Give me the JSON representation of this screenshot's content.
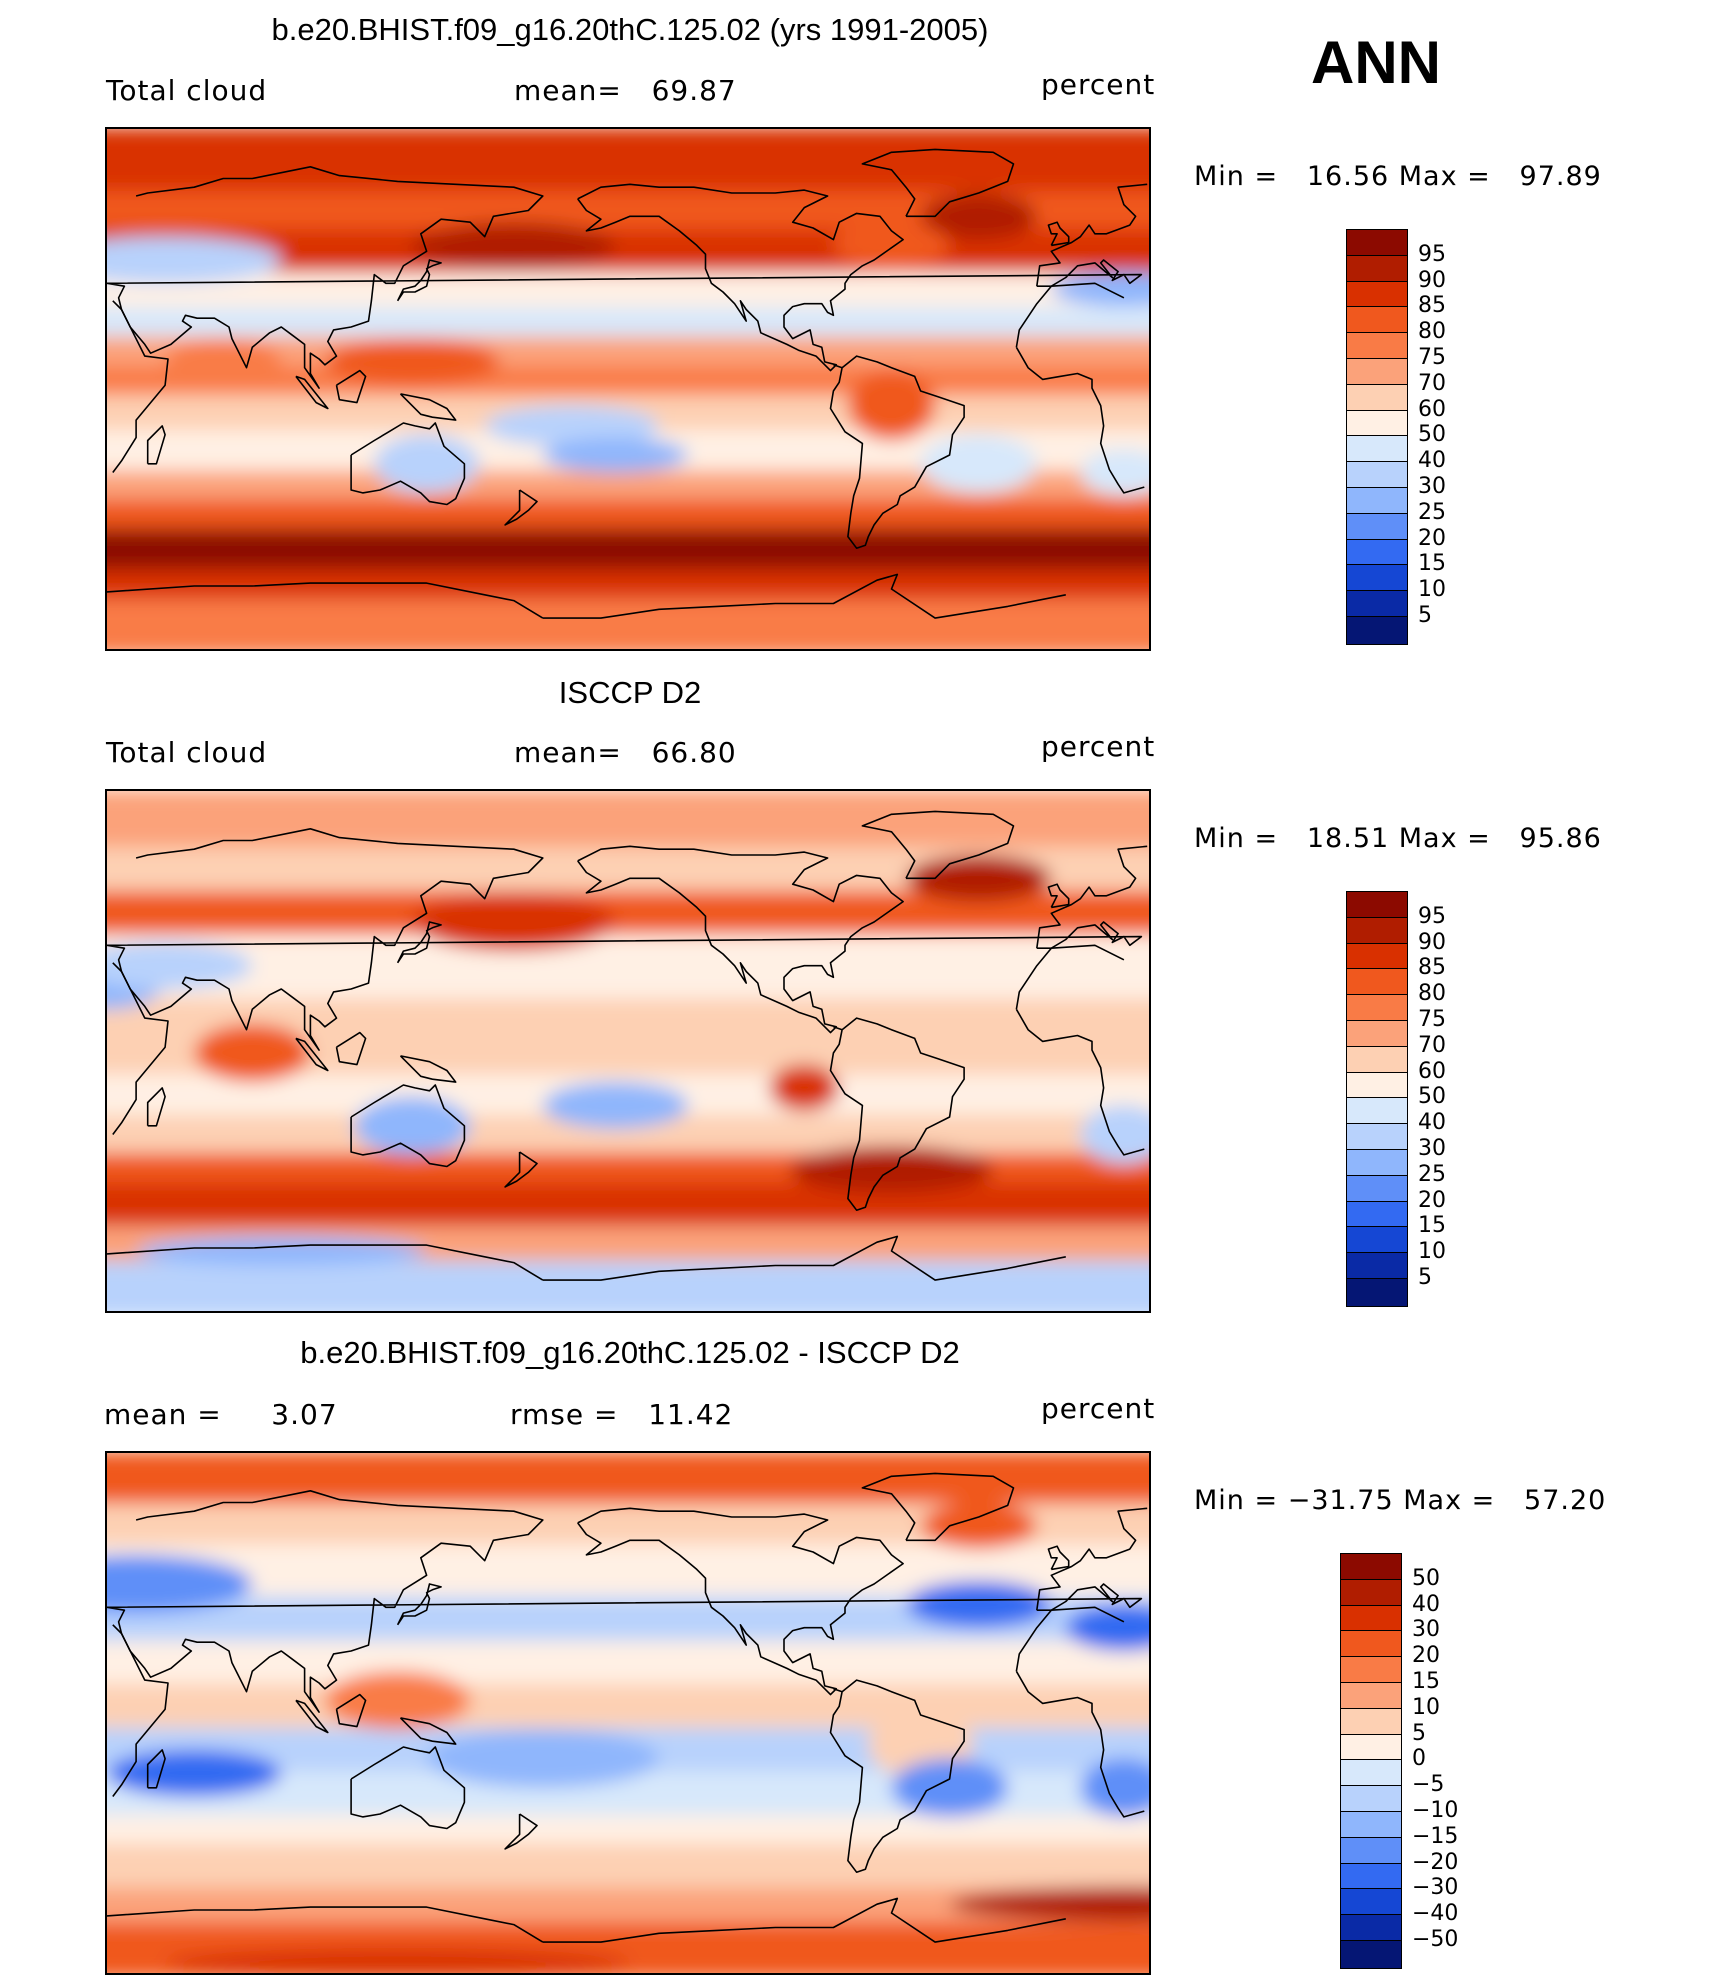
{
  "season": "ANN",
  "panels": [
    {
      "title": "b.e20.BHIST.f09_g16.20thC.125.02 (yrs 1991-2005)",
      "left_label": "Total cloud",
      "stat1_label": "mean=",
      "stat1_value": "69.87",
      "stat2_label": "",
      "stat2_value": "",
      "units": "percent",
      "min_label": "Min =",
      "min_value": "16.56",
      "max_label": "Max =",
      "max_value": "97.89",
      "colorbar": {
        "labels": [
          "95",
          "90",
          "85",
          "80",
          "75",
          "70",
          "60",
          "50",
          "40",
          "30",
          "25",
          "20",
          "15",
          "10",
          "5"
        ],
        "colors": [
          "#8c0a00",
          "#b01d00",
          "#d93000",
          "#f0581e",
          "#f97b46",
          "#fba27a",
          "#fdd0b3",
          "#fff0e4",
          "#d7e8fb",
          "#b8d2fc",
          "#8fb6fc",
          "#5f8ff8",
          "#336af2",
          "#1547d4",
          "#0a2aa6",
          "#051674"
        ]
      },
      "map_palette": "full"
    },
    {
      "title": "ISCCP D2",
      "left_label": "Total cloud",
      "stat1_label": "mean=",
      "stat1_value": "66.80",
      "stat2_label": "",
      "stat2_value": "",
      "units": "percent",
      "min_label": "Min =",
      "min_value": "18.51",
      "max_label": "Max =",
      "max_value": "95.86",
      "colorbar": {
        "labels": [
          "95",
          "90",
          "85",
          "80",
          "75",
          "70",
          "60",
          "50",
          "40",
          "30",
          "25",
          "20",
          "15",
          "10",
          "5"
        ],
        "colors": [
          "#8c0a00",
          "#b01d00",
          "#d93000",
          "#f0581e",
          "#f97b46",
          "#fba27a",
          "#fdd0b3",
          "#fff0e4",
          "#d7e8fb",
          "#b8d2fc",
          "#8fb6fc",
          "#5f8ff8",
          "#336af2",
          "#1547d4",
          "#0a2aa6",
          "#051674"
        ]
      },
      "map_palette": "obs"
    },
    {
      "title": "b.e20.BHIST.f09_g16.20thC.125.02 - ISCCP D2",
      "left_label": "mean =",
      "left_value": "3.07",
      "stat1_label": "rmse =",
      "stat1_value": "11.42",
      "stat2_label": "",
      "stat2_value": "",
      "units": "percent",
      "min_label": "Min =",
      "min_value": "−31.75",
      "max_label": "Max =",
      "max_value": "57.20",
      "colorbar": {
        "labels": [
          "50",
          "40",
          "30",
          "20",
          "15",
          "10",
          "5",
          "0",
          "−5",
          "−10",
          "−15",
          "−20",
          "−30",
          "−40",
          "−50"
        ],
        "colors": [
          "#8c0a00",
          "#b01d00",
          "#d93000",
          "#f0581e",
          "#f97b46",
          "#fba27a",
          "#fdd0b3",
          "#fff0e4",
          "#d7e8fb",
          "#b8d2fc",
          "#8fb6fc",
          "#5f8ff8",
          "#336af2",
          "#1547d4",
          "#0a2aa6",
          "#051674"
        ]
      },
      "map_palette": "diff"
    }
  ]
}
